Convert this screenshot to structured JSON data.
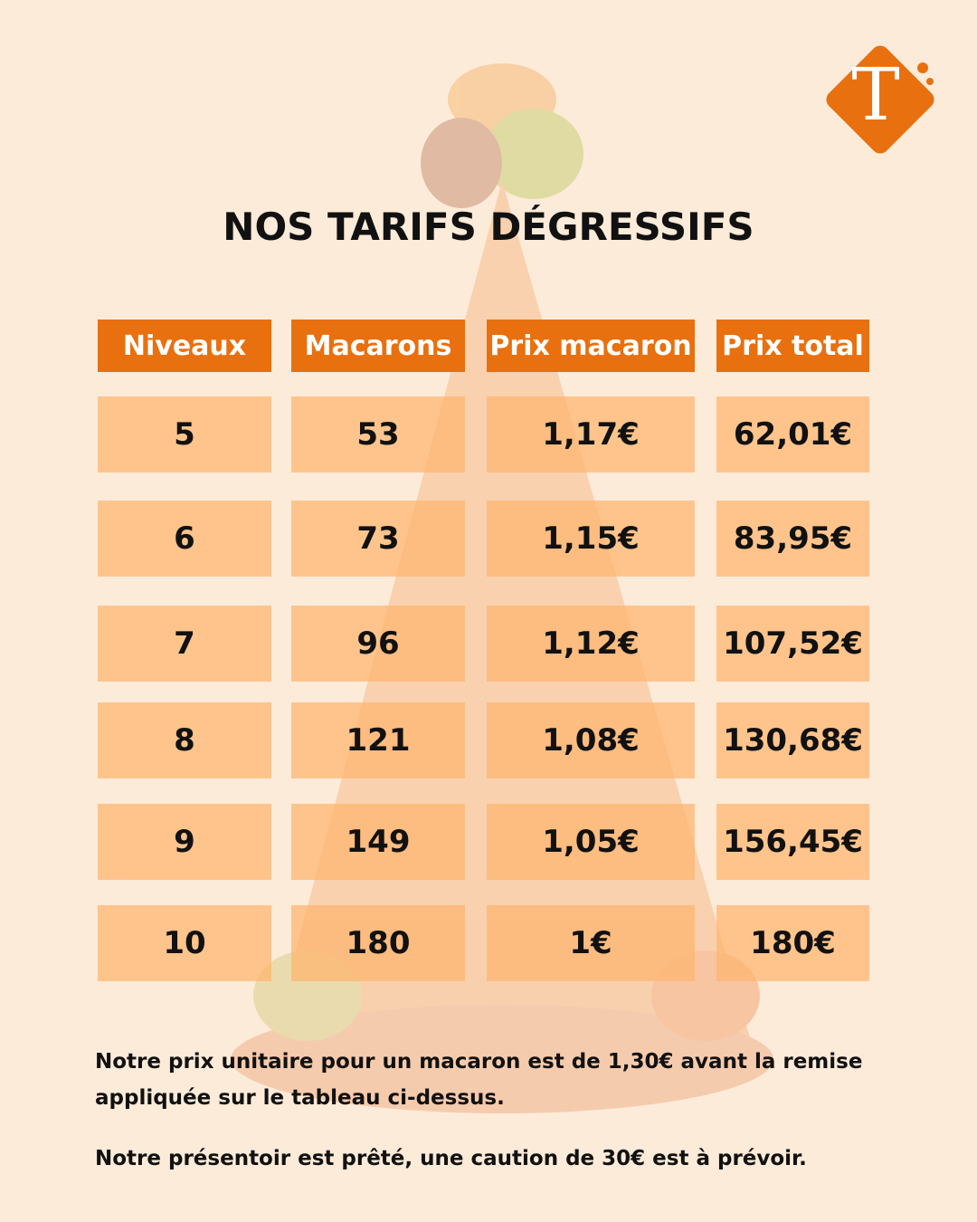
{
  "logo": "T",
  "header": {
    "title": "NOS TARIFS DÉGRESSIFS"
  },
  "table": {
    "columns": [
      "Niveaux",
      "Macarons",
      "Prix macaron",
      "Prix total"
    ],
    "rows": [
      [
        "5",
        "53",
        "1,17€",
        "62,01€"
      ],
      [
        "6",
        "73",
        "1,15€",
        "83,95€"
      ],
      [
        "7",
        "96",
        "1,12€",
        "107,52€"
      ],
      [
        "8",
        "121",
        "1,08€",
        "130,68€"
      ],
      [
        "9",
        "149",
        "1,05€",
        "156,45€"
      ],
      [
        "10",
        "180",
        "1€",
        "180€"
      ]
    ]
  },
  "notes": [
    "Notre prix unitaire pour un macaron est de 1,30€ avant la remise appliquée sur le tableau ci-dessus.",
    "Notre présentoir est prêté, une caution de 30€ est à prévoir."
  ]
}
